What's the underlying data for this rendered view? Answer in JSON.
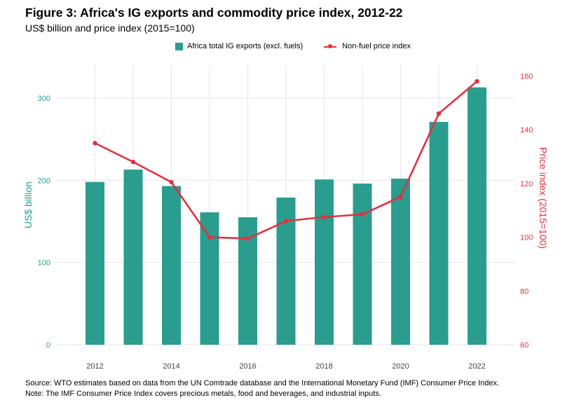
{
  "title": "Figure 3: Africa's IG exports and commodity price index, 2012-22",
  "subtitle": "US$ billion and price index (2015=100)",
  "legend": {
    "bars_label": "Africa total IG exports (excl. fuels)",
    "line_label": "Non-fuel price index"
  },
  "footer": {
    "source": "Source: WTO estimates based on data from the UN Comtrade database and the International Monetary Fund (IMF) Consumer Price Index.",
    "note": "Note: The IMF Consumer Price Index covers precious metals, food and beverages, and industrial inputs."
  },
  "colors": {
    "bars": "#2a9d8f",
    "line": "#e0313f",
    "grid": "#e6e6e6",
    "tick": "#555555"
  },
  "chart_data": {
    "type": "bar+line",
    "x": [
      2012,
      2013,
      2014,
      2015,
      2016,
      2017,
      2018,
      2019,
      2020,
      2021,
      2022
    ],
    "x_tick_labels": [
      "2012",
      "2014",
      "2016",
      "2018",
      "2020",
      "2022"
    ],
    "series": [
      {
        "name": "Africa total IG exports (excl. fuels)",
        "type": "bar",
        "axis": "left",
        "values": [
          198,
          213,
          193,
          161,
          155,
          179,
          201,
          196,
          202,
          271,
          313
        ]
      },
      {
        "name": "Non-fuel price index",
        "type": "line",
        "axis": "right",
        "values": [
          135,
          128,
          120.5,
          100,
          99.5,
          106,
          107.5,
          108.5,
          115,
          146,
          158
        ]
      }
    ],
    "y_left": {
      "label": "US$ billion",
      "lim": [
        0,
        340
      ],
      "ticks": [
        0,
        100,
        200,
        300
      ]
    },
    "y_right": {
      "label": "Price index (2015=100)",
      "lim": [
        60,
        164
      ],
      "ticks": [
        60,
        80,
        100,
        120,
        140,
        160
      ]
    },
    "grid": true,
    "legend_position": "top-center"
  }
}
